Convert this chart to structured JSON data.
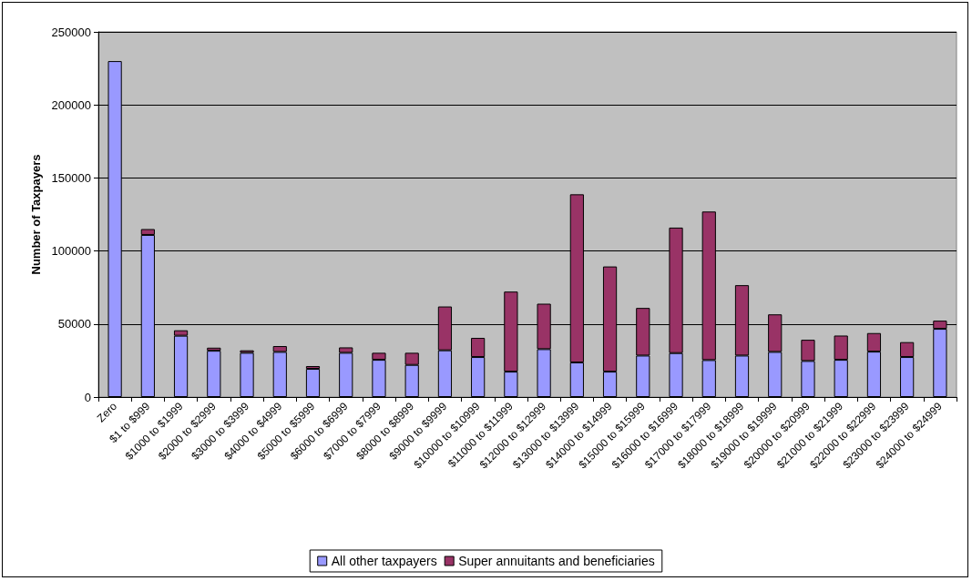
{
  "chart_data": {
    "type": "bar",
    "stacked": true,
    "ylabel": "Number of Taxpayers",
    "categories": [
      "Zero",
      "$1 to $999",
      "$1000 to $1999",
      "$2000 to $2999",
      "$3000 to $3999",
      "$4000 to $4999",
      "$5000 to $5999",
      "$6000 to $6999",
      "$7000 to $7999",
      "$8000 to $8999",
      "$9000 to $9999",
      "$10000 to $10999",
      "$11000 to $11999",
      "$12000 to $12999",
      "$13000 to $13999",
      "$14000 to $14999",
      "$15000 to $15999",
      "$16000 to $16999",
      "$17000 to $17999",
      "$18000 to $18999",
      "$19000 to $19999",
      "$20000 to $20999",
      "$21000 to $21999",
      "$22000 to $22999",
      "$23000 to $23999",
      "$24000 to $24999"
    ],
    "series": [
      {
        "name": "All other taxpayers",
        "color": "#9999ff",
        "values": [
          230000,
          111000,
          42000,
          31700,
          30300,
          30900,
          19300,
          30300,
          25500,
          22000,
          32000,
          27400,
          17400,
          32800,
          23700,
          17400,
          28400,
          30100,
          25300,
          28400,
          30900,
          24700,
          25500,
          31100,
          27400,
          46700
        ]
      },
      {
        "name": "Super annuitants and beneficiaries",
        "color": "#993366",
        "values": [
          0,
          4000,
          3700,
          2100,
          1700,
          4000,
          1900,
          3700,
          4800,
          8300,
          30000,
          13100,
          54800,
          31100,
          115100,
          72000,
          32600,
          85900,
          101700,
          48200,
          25700,
          14500,
          16600,
          12700,
          10200,
          5600
        ]
      }
    ],
    "ylim": [
      0,
      250000
    ],
    "yticks": [
      0,
      50000,
      100000,
      150000,
      200000,
      250000
    ],
    "grid": "y",
    "legend": "bottom"
  }
}
